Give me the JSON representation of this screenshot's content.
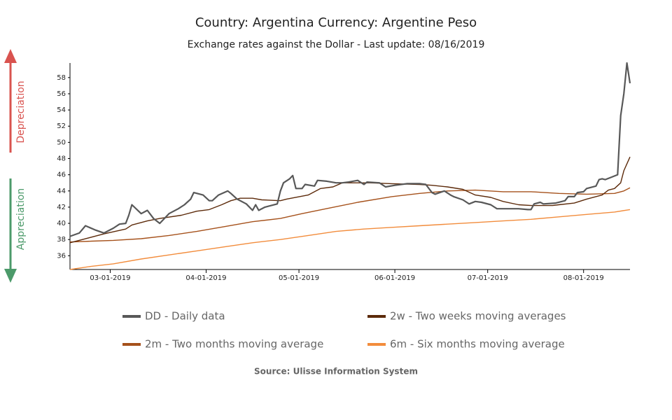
{
  "chart_data": {
    "type": "line",
    "title": "Country: Argentina Currency: Argentine Peso",
    "subtitle": "Exchange rates against the Dollar - Last update: 08/16/2019",
    "source": "Source: Ulisse Information System",
    "side_labels": {
      "up": "Depreciation",
      "down": "Appreciation"
    },
    "xlim": [
      "2019-02-16",
      "2019-08-16"
    ],
    "xticks": [
      {
        "value": "2019-03-01",
        "label": "03-01-2019"
      },
      {
        "value": "2019-04-01",
        "label": "04-01-2019"
      },
      {
        "value": "2019-05-01",
        "label": "05-01-2019"
      },
      {
        "value": "2019-06-01",
        "label": "06-01-2019"
      },
      {
        "value": "2019-07-01",
        "label": "07-01-2019"
      },
      {
        "value": "2019-08-01",
        "label": "08-01-2019"
      }
    ],
    "ylim": [
      34.3,
      59.8
    ],
    "yticks": [
      36,
      38,
      40,
      42,
      44,
      46,
      48,
      50,
      52,
      54,
      56,
      58
    ],
    "grid": false,
    "series": [
      {
        "name": "DD - Daily data",
        "color": "#585858",
        "width": 2.2,
        "x": [
          "2019-02-16",
          "2019-02-19",
          "2019-02-21",
          "2019-02-24",
          "2019-02-27",
          "2019-03-02",
          "2019-03-04",
          "2019-03-06",
          "2019-03-07",
          "2019-03-08",
          "2019-03-11",
          "2019-03-13",
          "2019-03-15",
          "2019-03-17",
          "2019-03-20",
          "2019-03-23",
          "2019-03-25",
          "2019-03-27",
          "2019-03-28",
          "2019-03-31",
          "2019-04-02",
          "2019-04-03",
          "2019-04-05",
          "2019-04-08",
          "2019-04-09",
          "2019-04-11",
          "2019-04-14",
          "2019-04-16",
          "2019-04-17",
          "2019-04-18",
          "2019-04-20",
          "2019-04-24",
          "2019-04-25",
          "2019-04-26",
          "2019-04-28",
          "2019-04-29",
          "2019-04-30",
          "2019-05-02",
          "2019-05-03",
          "2019-05-06",
          "2019-05-07",
          "2019-05-10",
          "2019-05-13",
          "2019-05-15",
          "2019-05-17",
          "2019-05-20",
          "2019-05-22",
          "2019-05-23",
          "2019-05-27",
          "2019-05-29",
          "2019-06-01",
          "2019-06-05",
          "2019-06-09",
          "2019-06-11",
          "2019-06-13",
          "2019-06-14",
          "2019-06-17",
          "2019-06-19",
          "2019-06-20",
          "2019-06-23",
          "2019-06-25",
          "2019-06-27",
          "2019-06-29",
          "2019-07-02",
          "2019-07-04",
          "2019-07-07",
          "2019-07-11",
          "2019-07-14",
          "2019-07-15",
          "2019-07-16",
          "2019-07-18",
          "2019-07-19",
          "2019-07-23",
          "2019-07-26",
          "2019-07-27",
          "2019-07-29",
          "2019-07-30",
          "2019-08-01",
          "2019-08-02",
          "2019-08-05",
          "2019-08-06",
          "2019-08-07",
          "2019-08-08",
          "2019-08-10",
          "2019-08-12",
          "2019-08-13",
          "2019-08-14",
          "2019-08-15",
          "2019-08-16"
        ],
        "values": [
          38.4,
          38.8,
          39.7,
          39.2,
          38.8,
          39.4,
          39.9,
          40.0,
          41.0,
          42.3,
          41.2,
          41.6,
          40.6,
          40.0,
          41.2,
          41.8,
          42.3,
          43.0,
          43.8,
          43.5,
          42.8,
          42.8,
          43.5,
          44.0,
          43.7,
          43.0,
          42.4,
          41.6,
          42.3,
          41.6,
          42.0,
          42.4,
          44.0,
          45.0,
          45.5,
          45.9,
          44.3,
          44.3,
          44.8,
          44.6,
          45.3,
          45.2,
          45.0,
          45.0,
          45.1,
          45.3,
          44.8,
          45.1,
          45.0,
          44.5,
          44.7,
          44.9,
          44.9,
          44.8,
          43.8,
          43.6,
          44.0,
          43.5,
          43.3,
          42.9,
          42.4,
          42.7,
          42.6,
          42.3,
          41.8,
          41.8,
          41.8,
          41.7,
          41.7,
          42.4,
          42.6,
          42.4,
          42.5,
          42.8,
          43.3,
          43.3,
          43.8,
          43.9,
          44.3,
          44.6,
          45.4,
          45.5,
          45.4,
          45.7,
          46.0,
          53.3,
          56.0,
          59.8,
          57.3
        ]
      },
      {
        "name": "2w - Two weeks moving averages",
        "color": "#5c2a0a",
        "width": 1.4,
        "x": [
          "2019-02-16",
          "2019-02-27",
          "2019-03-06",
          "2019-03-08",
          "2019-03-13",
          "2019-03-17",
          "2019-03-24",
          "2019-03-29",
          "2019-04-02",
          "2019-04-06",
          "2019-04-09",
          "2019-04-12",
          "2019-04-16",
          "2019-04-19",
          "2019-04-25",
          "2019-04-27",
          "2019-05-04",
          "2019-05-08",
          "2019-05-12",
          "2019-05-15",
          "2019-05-24",
          "2019-05-31",
          "2019-06-09",
          "2019-06-13",
          "2019-06-18",
          "2019-06-23",
          "2019-06-27",
          "2019-07-02",
          "2019-07-06",
          "2019-07-11",
          "2019-07-15",
          "2019-07-22",
          "2019-07-24",
          "2019-07-29",
          "2019-08-02",
          "2019-08-07",
          "2019-08-09",
          "2019-08-11",
          "2019-08-13",
          "2019-08-14",
          "2019-08-16"
        ],
        "values": [
          37.6,
          38.7,
          39.3,
          39.8,
          40.3,
          40.6,
          41.0,
          41.5,
          41.7,
          42.3,
          42.8,
          43.1,
          43.1,
          42.9,
          42.8,
          43.0,
          43.5,
          44.3,
          44.5,
          45.0,
          45.0,
          44.9,
          44.8,
          44.7,
          44.5,
          44.2,
          43.5,
          43.2,
          42.7,
          42.3,
          42.2,
          42.2,
          42.3,
          42.5,
          43.0,
          43.5,
          44.1,
          44.3,
          45.0,
          46.5,
          48.2
        ]
      },
      {
        "name": "2m - Two months moving average",
        "color": "#a5511b",
        "width": 1.4,
        "x": [
          "2019-02-16",
          "2019-02-23",
          "2019-03-02",
          "2019-03-11",
          "2019-03-20",
          "2019-03-29",
          "2019-04-07",
          "2019-04-16",
          "2019-04-25",
          "2019-05-02",
          "2019-05-11",
          "2019-05-20",
          "2019-05-31",
          "2019-06-09",
          "2019-06-18",
          "2019-06-27",
          "2019-07-06",
          "2019-07-15",
          "2019-07-24",
          "2019-08-02",
          "2019-08-11",
          "2019-08-14",
          "2019-08-16"
        ],
        "values": [
          37.7,
          37.8,
          37.9,
          38.1,
          38.5,
          39.0,
          39.6,
          40.2,
          40.6,
          41.2,
          41.9,
          42.6,
          43.3,
          43.7,
          44.0,
          44.1,
          43.9,
          43.9,
          43.7,
          43.6,
          43.7,
          44.0,
          44.4
        ]
      },
      {
        "name": "6m - Six months moving average",
        "color": "#f28c3c",
        "width": 1.4,
        "x": [
          "2019-02-16",
          "2019-02-23",
          "2019-03-02",
          "2019-03-11",
          "2019-03-20",
          "2019-03-29",
          "2019-04-07",
          "2019-04-16",
          "2019-04-25",
          "2019-05-04",
          "2019-05-13",
          "2019-05-22",
          "2019-05-31",
          "2019-06-09",
          "2019-06-18",
          "2019-06-27",
          "2019-07-06",
          "2019-07-15",
          "2019-07-24",
          "2019-08-02",
          "2019-08-11",
          "2019-08-16"
        ],
        "values": [
          34.3,
          34.7,
          35.0,
          35.6,
          36.1,
          36.6,
          37.1,
          37.6,
          38.0,
          38.5,
          39.0,
          39.3,
          39.5,
          39.7,
          39.9,
          40.1,
          40.3,
          40.5,
          40.8,
          41.1,
          41.4,
          41.7
        ]
      }
    ]
  }
}
